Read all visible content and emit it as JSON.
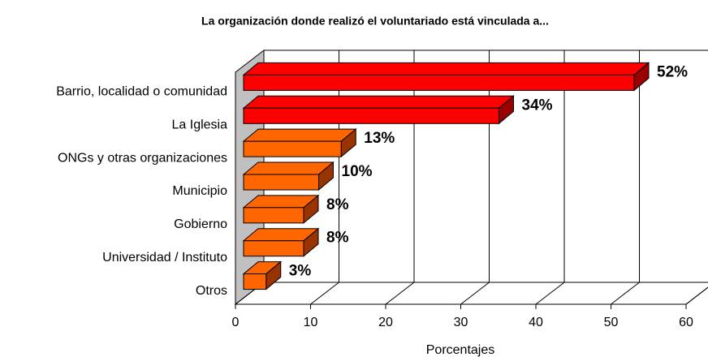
{
  "chart_data": {
    "type": "bar3d_horizontal",
    "title": "La organización donde realizó el voluntariado está vinculada a...",
    "x_label": "Porcentajes",
    "categories": [
      "Barrio, localidad o comunidad",
      "La Iglesia",
      "ONGs y otras organizaciones",
      "Municipio",
      "Gobierno",
      "Universidad / Instituto",
      "Otros"
    ],
    "values": [
      52,
      34,
      13,
      10,
      8,
      8,
      3
    ],
    "value_labels": [
      "52%",
      "34%",
      "13%",
      "10%",
      "8%",
      "8%",
      "3%"
    ],
    "colors": [
      "#ff0000",
      "#ff0000",
      "#ff6600",
      "#ff6600",
      "#ff6600",
      "#ff6600",
      "#ff6600"
    ],
    "xlim": [
      0,
      60
    ],
    "xticks": [
      0,
      10,
      20,
      30,
      40,
      50,
      60
    ],
    "grid": true
  }
}
